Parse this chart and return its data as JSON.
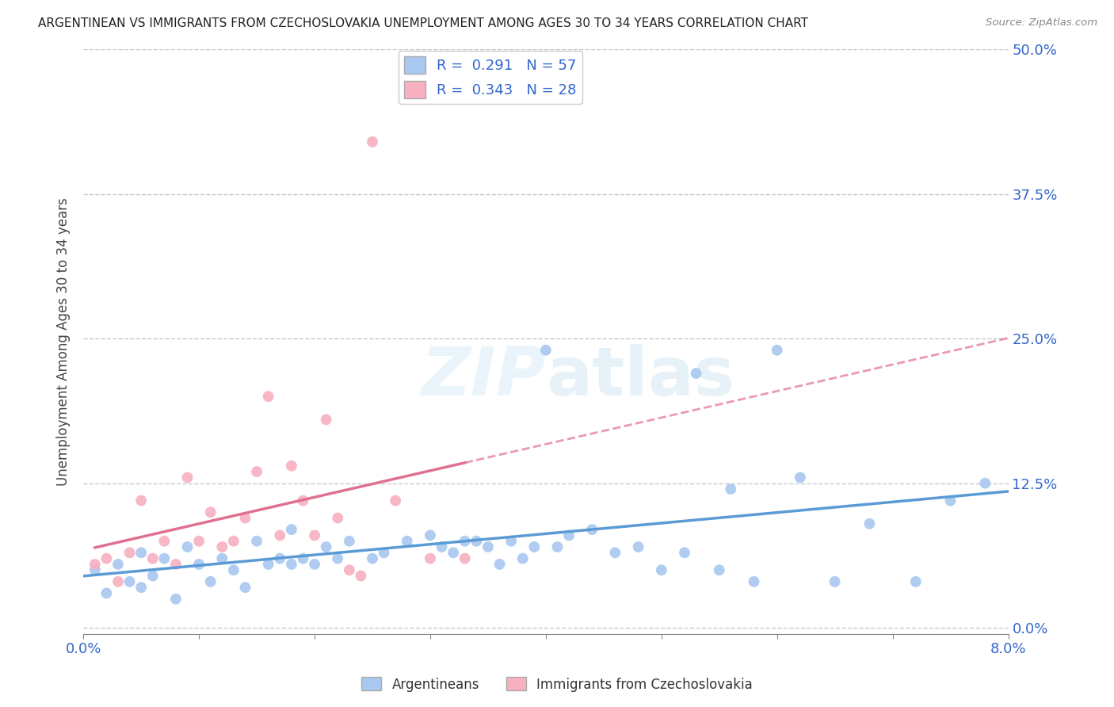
{
  "title": "ARGENTINEAN VS IMMIGRANTS FROM CZECHOSLOVAKIA UNEMPLOYMENT AMONG AGES 30 TO 34 YEARS CORRELATION CHART",
  "source": "Source: ZipAtlas.com",
  "ylabel": "Unemployment Among Ages 30 to 34 years",
  "xlim": [
    0.0,
    0.08
  ],
  "ylim": [
    -0.005,
    0.5
  ],
  "ytick_labels": [
    "0.0%",
    "12.5%",
    "25.0%",
    "37.5%",
    "50.0%"
  ],
  "yticks": [
    0.0,
    0.125,
    0.25,
    0.375,
    0.5
  ],
  "grid_color": "#c8c8c8",
  "background_color": "#ffffff",
  "argentineans_color": "#a8c8f0",
  "argentineans_line_color": "#5b9bd5",
  "czech_color": "#f8b0c0",
  "czech_line_color": "#e07090",
  "R1": 0.291,
  "N1": 57,
  "R2": 0.343,
  "N2": 28,
  "arg_x": [
    0.001,
    0.002,
    0.003,
    0.004,
    0.005,
    0.005,
    0.006,
    0.007,
    0.008,
    0.009,
    0.01,
    0.011,
    0.012,
    0.013,
    0.014,
    0.015,
    0.016,
    0.017,
    0.018,
    0.018,
    0.019,
    0.02,
    0.021,
    0.022,
    0.023,
    0.025,
    0.026,
    0.028,
    0.03,
    0.031,
    0.032,
    0.033,
    0.034,
    0.035,
    0.036,
    0.037,
    0.038,
    0.039,
    0.04,
    0.041,
    0.042,
    0.044,
    0.046,
    0.048,
    0.05,
    0.052,
    0.053,
    0.055,
    0.056,
    0.058,
    0.06,
    0.062,
    0.065,
    0.068,
    0.072,
    0.075,
    0.078
  ],
  "arg_y": [
    0.05,
    0.03,
    0.055,
    0.04,
    0.035,
    0.065,
    0.045,
    0.06,
    0.025,
    0.07,
    0.055,
    0.04,
    0.06,
    0.05,
    0.035,
    0.075,
    0.055,
    0.06,
    0.055,
    0.085,
    0.06,
    0.055,
    0.07,
    0.06,
    0.075,
    0.06,
    0.065,
    0.075,
    0.08,
    0.07,
    0.065,
    0.075,
    0.075,
    0.07,
    0.055,
    0.075,
    0.06,
    0.07,
    0.24,
    0.07,
    0.08,
    0.085,
    0.065,
    0.07,
    0.05,
    0.065,
    0.22,
    0.05,
    0.12,
    0.04,
    0.24,
    0.13,
    0.04,
    0.09,
    0.04,
    0.11,
    0.125
  ],
  "czech_x": [
    0.001,
    0.002,
    0.003,
    0.004,
    0.005,
    0.006,
    0.007,
    0.008,
    0.009,
    0.01,
    0.011,
    0.012,
    0.013,
    0.014,
    0.015,
    0.016,
    0.017,
    0.018,
    0.019,
    0.02,
    0.021,
    0.022,
    0.023,
    0.024,
    0.025,
    0.027,
    0.03,
    0.033
  ],
  "czech_y": [
    0.055,
    0.06,
    0.04,
    0.065,
    0.11,
    0.06,
    0.075,
    0.055,
    0.13,
    0.075,
    0.1,
    0.07,
    0.075,
    0.095,
    0.135,
    0.2,
    0.08,
    0.14,
    0.11,
    0.08,
    0.18,
    0.095,
    0.05,
    0.045,
    0.42,
    0.11,
    0.06,
    0.06
  ]
}
